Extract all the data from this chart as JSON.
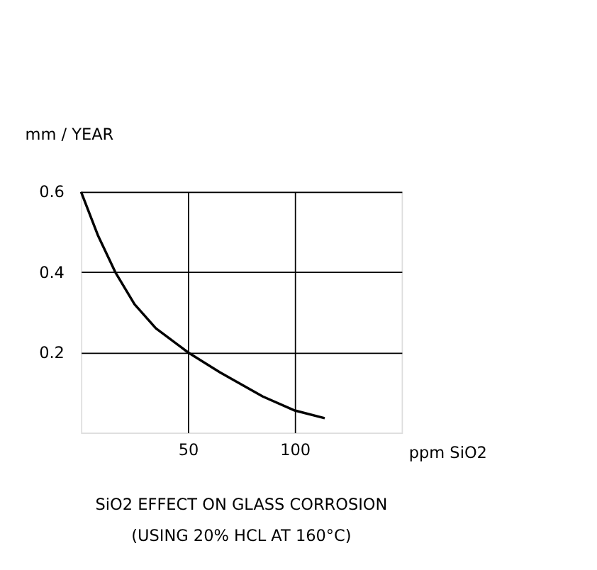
{
  "chart_data": {
    "type": "line",
    "title": "SiO2 EFFECT ON GLASS CORROSION",
    "subtitle": "(USING 20% HCL AT 160°C)",
    "xlabel": "ppm SiO2",
    "ylabel": "mm / YEAR",
    "x": [
      0,
      8,
      16,
      25,
      35,
      50,
      65,
      75,
      85,
      100,
      114
    ],
    "series": [
      {
        "color": "#000000",
        "values": [
          0.6,
          0.49,
          0.4,
          0.32,
          0.26,
          0.2,
          0.15,
          0.12,
          0.09,
          0.055,
          0.036
        ]
      }
    ],
    "xlim": [
      0,
      150
    ],
    "ylim": [
      0,
      0.6
    ],
    "xticks": [
      50,
      100
    ],
    "yticks": [
      0.2,
      0.4,
      0.6
    ],
    "grid": true,
    "legend": false
  }
}
